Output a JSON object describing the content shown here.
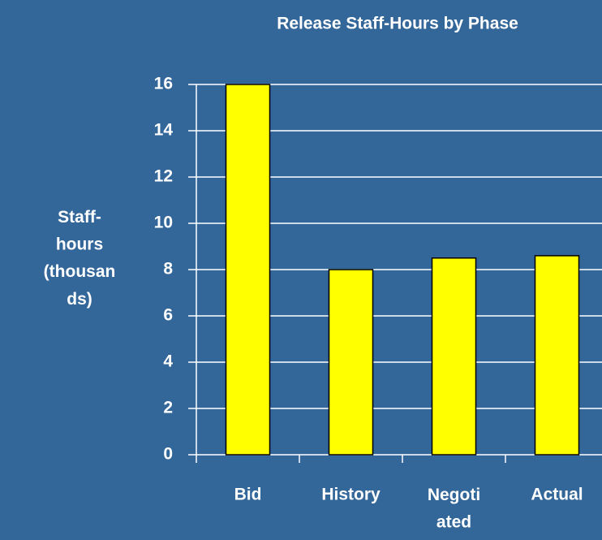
{
  "chart_data": {
    "type": "bar",
    "title": "Release Staff-Hours by Phase",
    "y_label": "Staff-\nhours\n(thousan\nds)",
    "categories": [
      "Bid",
      "History",
      "Negoti\nated",
      "Actual"
    ],
    "values": [
      16,
      8,
      8.5,
      8.6
    ],
    "color": "#ffff00",
    "ylim": [
      0,
      16
    ],
    "yticks": [
      0,
      2,
      4,
      6,
      8,
      10,
      12,
      14,
      16
    ],
    "grid": true
  }
}
